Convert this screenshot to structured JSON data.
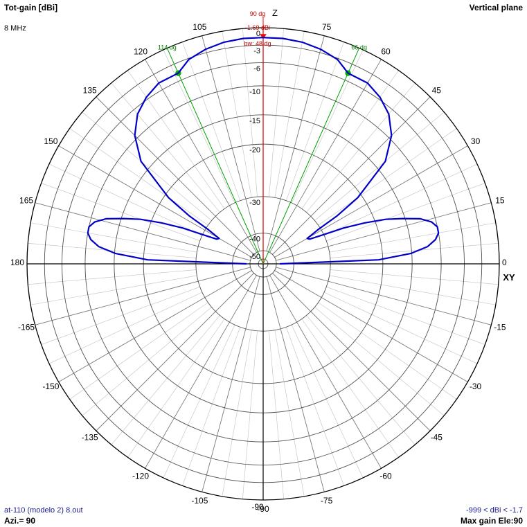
{
  "header": {
    "title": "Tot-gain [dBi]",
    "frequency": "8 MHz",
    "plane": "Vertical plane"
  },
  "footer": {
    "file": "at-110 (modelo 2) 8.out",
    "azimuth": "Azi.= 90",
    "range": "-999 < dBi < -1.7",
    "max_gain": "Max gain Ele:90"
  },
  "colors": {
    "pattern": "#0000c8",
    "max_marker": "#ff0000",
    "beam_marker": "#00a000",
    "grid": "#c8c8c8",
    "ring": "#505050",
    "axis": "#000000"
  },
  "chart_data": {
    "type": "polar",
    "title": "Tot-gain [dBi]",
    "plane": "Vertical plane",
    "axis_labels": {
      "up": "Z",
      "right": "XY"
    },
    "radial_scale": "dB (compressed)",
    "radial_ticks": [
      "0",
      "-3",
      "-6",
      "-10",
      "-15",
      "-20",
      "-30",
      "-40",
      "-50"
    ],
    "radial_tick_values": [
      0,
      -3,
      -6,
      -10,
      -15,
      -20,
      -30,
      -40,
      -50
    ],
    "angle_labels": [
      "0",
      "15",
      "30",
      "45",
      "60",
      "75",
      "90",
      "105",
      "120",
      "135",
      "150",
      "165",
      "180",
      "-165",
      "-150",
      "-135",
      "-120",
      "-105",
      "-90",
      "-75",
      "-60",
      "-45",
      "-30",
      "-15"
    ],
    "angle_label_values": [
      0,
      15,
      30,
      45,
      60,
      75,
      90,
      105,
      120,
      135,
      150,
      165,
      180,
      -165,
      -150,
      -135,
      -120,
      -105,
      -90,
      -75,
      -60,
      -45,
      -30,
      -15
    ],
    "max_direction": {
      "angle_label": "90 dg",
      "angle": 90,
      "gain_label": "-1.69 dBi",
      "gain": -1.69,
      "beamwidth_label": "bw: 48 dg",
      "beamwidth": 48
    },
    "beam_edges": [
      {
        "label": "66 dg",
        "angle": 66,
        "gain": -4.7
      },
      {
        "label": "114 dg",
        "angle": 114,
        "gain": -4.7
      }
    ],
    "series": [
      {
        "elevation_deg": [
          0,
          2,
          4,
          6,
          8,
          10,
          12,
          14,
          16,
          18,
          20,
          22,
          24,
          26,
          28,
          30,
          32,
          33,
          35,
          40,
          45,
          50,
          55,
          60,
          66,
          70,
          75,
          80,
          85,
          90,
          95,
          100,
          105,
          110,
          114,
          120,
          125,
          130,
          135,
          140,
          145,
          147,
          148,
          150,
          152,
          154,
          156,
          158,
          160,
          162,
          164,
          166,
          168,
          170,
          172,
          174,
          176,
          178,
          180
        ],
        "gain_dbi": [
          -48.0,
          -20.8,
          -15.2,
          -12.2,
          -10.7,
          -10.0,
          -10.0,
          -10.8,
          -12.5,
          -15.4,
          -18.2,
          -22.0,
          -26.0,
          -30.5,
          -34.0,
          -34.5,
          -30.5,
          -26.0,
          -20.8,
          -13.2,
          -9.4,
          -7.0,
          -5.6,
          -4.7,
          -4.7,
          -3.2,
          -2.4,
          -1.9,
          -1.7,
          -1.69,
          -1.7,
          -1.9,
          -2.4,
          -3.2,
          -4.7,
          -4.7,
          -5.6,
          -7.0,
          -9.4,
          -13.2,
          -20.8,
          -26.0,
          -30.5,
          -34.5,
          -34.0,
          -30.5,
          -26.0,
          -22.0,
          -18.2,
          -15.4,
          -12.5,
          -10.8,
          -10.0,
          -10.0,
          -10.7,
          -12.2,
          -15.2,
          -20.8,
          -48.0
        ]
      }
    ]
  }
}
